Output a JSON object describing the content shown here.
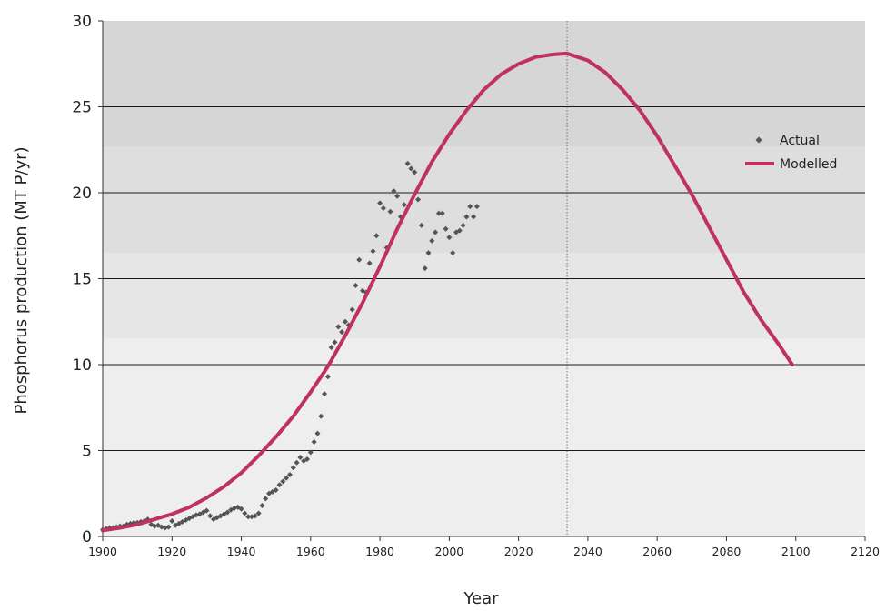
{
  "chart_data": {
    "type": "scatter",
    "xlabel": "Year",
    "ylabel": "Phosphorus production (MT P/yr)",
    "xlim": [
      1900,
      2120
    ],
    "ylim": [
      0,
      30
    ],
    "x_ticks": [
      "1900",
      "1920",
      "1940",
      "1960",
      "1980",
      "2000",
      "2020",
      "2040",
      "2060",
      "2080",
      "2100",
      "2120"
    ],
    "y_ticks": [
      "0",
      "5",
      "10",
      "15",
      "20",
      "25",
      "30"
    ],
    "grid": "horizontal",
    "peak_marker_year": 2034,
    "legend_position": "right",
    "background_bands": [
      {
        "from": 0,
        "to": 11.5,
        "color": "#eeeeee"
      },
      {
        "from": 11.5,
        "to": 16.5,
        "color": "#e6e6e6"
      },
      {
        "from": 16.5,
        "to": 22.7,
        "color": "#dedede"
      },
      {
        "from": 22.7,
        "to": 30,
        "color": "#d6d6d6"
      }
    ],
    "series": [
      {
        "name": "Actual",
        "type": "scatter",
        "color": "#555555",
        "points": [
          [
            1900,
            0.4
          ],
          [
            1901,
            0.45
          ],
          [
            1902,
            0.5
          ],
          [
            1903,
            0.5
          ],
          [
            1904,
            0.55
          ],
          [
            1905,
            0.6
          ],
          [
            1906,
            0.6
          ],
          [
            1907,
            0.7
          ],
          [
            1908,
            0.75
          ],
          [
            1909,
            0.8
          ],
          [
            1910,
            0.8
          ],
          [
            1911,
            0.85
          ],
          [
            1912,
            0.9
          ],
          [
            1913,
            1.0
          ],
          [
            1914,
            0.7
          ],
          [
            1915,
            0.6
          ],
          [
            1916,
            0.65
          ],
          [
            1917,
            0.55
          ],
          [
            1918,
            0.5
          ],
          [
            1919,
            0.55
          ],
          [
            1920,
            0.9
          ],
          [
            1921,
            0.65
          ],
          [
            1922,
            0.75
          ],
          [
            1923,
            0.85
          ],
          [
            1924,
            0.95
          ],
          [
            1925,
            1.05
          ],
          [
            1926,
            1.15
          ],
          [
            1927,
            1.25
          ],
          [
            1928,
            1.3
          ],
          [
            1929,
            1.4
          ],
          [
            1930,
            1.5
          ],
          [
            1931,
            1.2
          ],
          [
            1932,
            1.0
          ],
          [
            1933,
            1.1
          ],
          [
            1934,
            1.2
          ],
          [
            1935,
            1.3
          ],
          [
            1936,
            1.4
          ],
          [
            1937,
            1.55
          ],
          [
            1938,
            1.65
          ],
          [
            1939,
            1.7
          ],
          [
            1940,
            1.6
          ],
          [
            1941,
            1.35
          ],
          [
            1942,
            1.15
          ],
          [
            1943,
            1.15
          ],
          [
            1944,
            1.2
          ],
          [
            1945,
            1.35
          ],
          [
            1946,
            1.8
          ],
          [
            1947,
            2.2
          ],
          [
            1948,
            2.5
          ],
          [
            1949,
            2.6
          ],
          [
            1950,
            2.7
          ],
          [
            1951,
            3.0
          ],
          [
            1952,
            3.2
          ],
          [
            1953,
            3.4
          ],
          [
            1954,
            3.6
          ],
          [
            1955,
            4.0
          ],
          [
            1956,
            4.3
          ],
          [
            1957,
            4.6
          ],
          [
            1958,
            4.4
          ],
          [
            1959,
            4.5
          ],
          [
            1960,
            4.9
          ],
          [
            1961,
            5.5
          ],
          [
            1962,
            6.0
          ],
          [
            1963,
            7.0
          ],
          [
            1964,
            8.3
          ],
          [
            1965,
            9.3
          ],
          [
            1966,
            11.0
          ],
          [
            1967,
            11.3
          ],
          [
            1968,
            12.2
          ],
          [
            1969,
            11.9
          ],
          [
            1970,
            12.5
          ],
          [
            1971,
            12.3
          ],
          [
            1972,
            13.2
          ],
          [
            1973,
            14.6
          ],
          [
            1974,
            16.1
          ],
          [
            1975,
            14.3
          ],
          [
            1976,
            14.2
          ],
          [
            1977,
            15.9
          ],
          [
            1978,
            16.6
          ],
          [
            1979,
            17.5
          ],
          [
            1980,
            19.4
          ],
          [
            1981,
            19.1
          ],
          [
            1982,
            16.8
          ],
          [
            1983,
            18.9
          ],
          [
            1984,
            20.1
          ],
          [
            1985,
            19.8
          ],
          [
            1986,
            18.6
          ],
          [
            1987,
            19.3
          ],
          [
            1988,
            21.7
          ],
          [
            1989,
            21.4
          ],
          [
            1990,
            21.2
          ],
          [
            1991,
            19.6
          ],
          [
            1992,
            18.1
          ],
          [
            1993,
            15.6
          ],
          [
            1994,
            16.5
          ],
          [
            1995,
            17.2
          ],
          [
            1996,
            17.7
          ],
          [
            1997,
            18.8
          ],
          [
            1998,
            18.8
          ],
          [
            1999,
            17.9
          ],
          [
            2000,
            17.4
          ],
          [
            2001,
            16.5
          ],
          [
            2002,
            17.7
          ],
          [
            2003,
            17.8
          ],
          [
            2004,
            18.1
          ],
          [
            2005,
            18.6
          ],
          [
            2006,
            19.2
          ],
          [
            2007,
            18.6
          ],
          [
            2008,
            19.2
          ]
        ]
      },
      {
        "name": "Modelled",
        "type": "line",
        "color": "#c0325e",
        "points": [
          [
            1900,
            0.35
          ],
          [
            1905,
            0.5
          ],
          [
            1910,
            0.7
          ],
          [
            1915,
            1.0
          ],
          [
            1920,
            1.3
          ],
          [
            1925,
            1.7
          ],
          [
            1930,
            2.25
          ],
          [
            1935,
            2.9
          ],
          [
            1940,
            3.7
          ],
          [
            1945,
            4.7
          ],
          [
            1950,
            5.8
          ],
          [
            1955,
            7.0
          ],
          [
            1960,
            8.4
          ],
          [
            1965,
            9.9
          ],
          [
            1970,
            11.7
          ],
          [
            1975,
            13.6
          ],
          [
            1980,
            15.7
          ],
          [
            1985,
            17.9
          ],
          [
            1990,
            19.9
          ],
          [
            1995,
            21.8
          ],
          [
            2000,
            23.4
          ],
          [
            2005,
            24.8
          ],
          [
            2010,
            26.0
          ],
          [
            2015,
            26.9
          ],
          [
            2020,
            27.5
          ],
          [
            2025,
            27.9
          ],
          [
            2030,
            28.05
          ],
          [
            2034,
            28.1
          ],
          [
            2040,
            27.7
          ],
          [
            2045,
            27.0
          ],
          [
            2050,
            26.0
          ],
          [
            2055,
            24.8
          ],
          [
            2060,
            23.3
          ],
          [
            2065,
            21.6
          ],
          [
            2070,
            19.9
          ],
          [
            2075,
            18.0
          ],
          [
            2080,
            16.1
          ],
          [
            2085,
            14.2
          ],
          [
            2090,
            12.6
          ],
          [
            2095,
            11.2
          ],
          [
            2099,
            10.0
          ]
        ]
      }
    ]
  }
}
